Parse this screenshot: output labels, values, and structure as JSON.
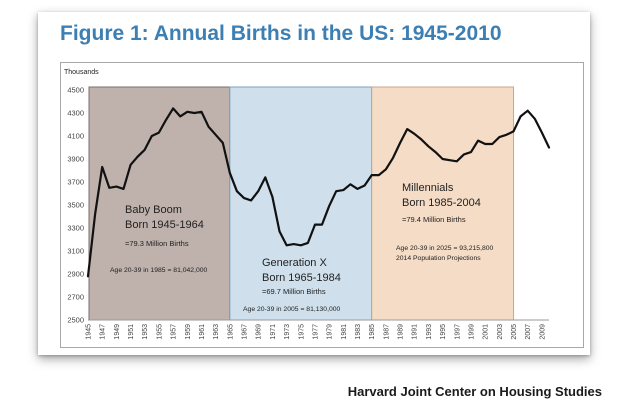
{
  "title": "Figure 1: Annual Births in the US: 1945-2010",
  "source": "Harvard Joint Center on Housing Studies",
  "chart_data": {
    "type": "line",
    "ylabel": "Thousands",
    "xlabel": "",
    "ylim": [
      2500,
      4500
    ],
    "yticks": [
      2500,
      2700,
      2900,
      3100,
      3300,
      3500,
      3700,
      3900,
      4100,
      4300,
      4500
    ],
    "xlim": [
      1945,
      2010
    ],
    "xtick_labels": [
      "1945",
      "1947",
      "1949",
      "1951",
      "1953",
      "1955",
      "1957",
      "1959",
      "1961",
      "1963",
      "1965",
      "1967",
      "1969",
      "1971",
      "1973",
      "1975",
      "1977",
      "1979",
      "1981",
      "1983",
      "1985",
      "1987",
      "1989",
      "1991",
      "1993",
      "1995",
      "1997",
      "1999",
      "2001",
      "2003",
      "2005",
      "2007",
      "2009"
    ],
    "grid": false,
    "line_color": "#111111",
    "series": [
      {
        "x": [
          1945,
          1946,
          1947,
          1948,
          1949,
          1950,
          1951,
          1952,
          1953,
          1954,
          1955,
          1956,
          1957,
          1958,
          1959,
          1960,
          1961,
          1962,
          1963,
          1964,
          1965,
          1966,
          1967,
          1968,
          1969,
          1970,
          1971,
          1972,
          1973,
          1974,
          1975,
          1976,
          1977,
          1978,
          1979,
          1980,
          1981,
          1982,
          1983,
          1984,
          1985,
          1986,
          1987,
          1988,
          1989,
          1990,
          1991,
          1992,
          1993,
          1994,
          1995,
          1996,
          1997,
          1998,
          1999,
          2000,
          2001,
          2002,
          2003,
          2004,
          2005,
          2006,
          2007,
          2008,
          2009,
          2010
        ],
        "values": [
          2880,
          3420,
          3830,
          3650,
          3660,
          3640,
          3850,
          3920,
          3980,
          4100,
          4130,
          4240,
          4340,
          4270,
          4310,
          4300,
          4310,
          4180,
          4110,
          4040,
          3780,
          3620,
          3560,
          3540,
          3620,
          3740,
          3570,
          3270,
          3150,
          3160,
          3150,
          3170,
          3330,
          3330,
          3490,
          3620,
          3630,
          3680,
          3640,
          3670,
          3760,
          3760,
          3810,
          3910,
          4040,
          4160,
          4120,
          4070,
          4010,
          3960,
          3900,
          3890,
          3880,
          3940,
          3960,
          4060,
          4030,
          4030,
          4090,
          4110,
          4140,
          4270,
          4320,
          4250,
          4130,
          4000
        ]
      }
    ],
    "regions": [
      {
        "start": 1945,
        "end": 1964,
        "fill": "#bfb1ab",
        "stroke": "#7a6f69",
        "name_lines": [
          "Baby Boom",
          "Born 1945-1964"
        ],
        "births": "=79.3 Million Births",
        "age_note": "Age 20-39 in 1985 = 81,042,000",
        "projection": ""
      },
      {
        "start": 1965,
        "end": 1984,
        "fill": "#cfe0ec",
        "stroke": "#7d9fbd",
        "name_lines": [
          "Generation X",
          "Born 1965-1984"
        ],
        "births": "=69.7 Million Births",
        "age_note": "Age 20-39 in 2005 = 81,130,000",
        "projection": ""
      },
      {
        "start": 1985,
        "end": 2004,
        "fill": "#f5dcc6",
        "stroke": "#c9a589",
        "name_lines": [
          "Millennials",
          "Born 1985-2004"
        ],
        "births": "=79.4 Million Births",
        "age_note": "Age 20-39 in 2025 = 93,215,800",
        "projection": "2014 Population Projections"
      }
    ]
  }
}
